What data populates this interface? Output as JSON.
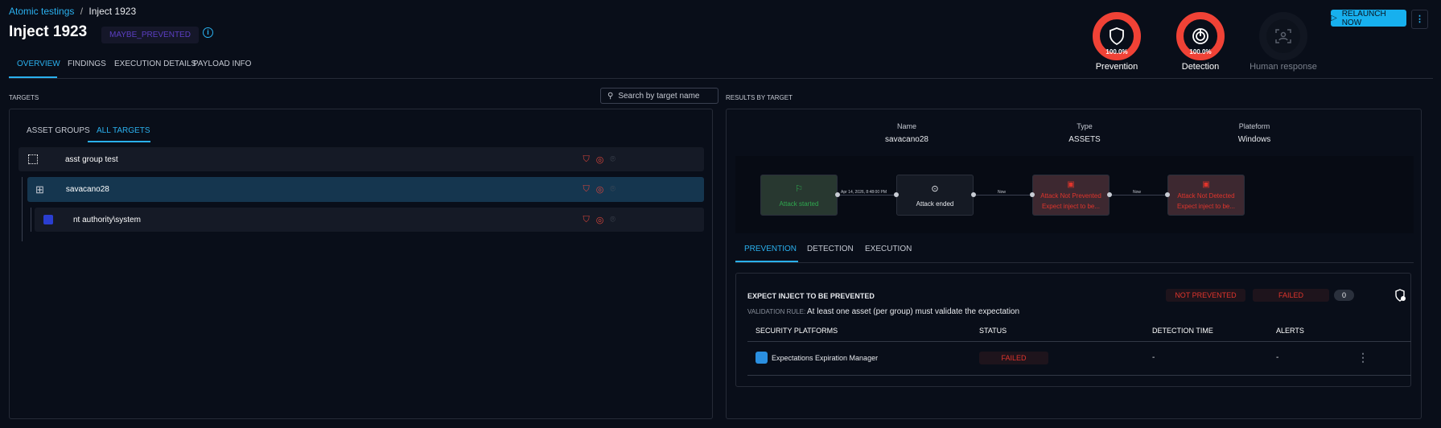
{
  "breadcrumb": {
    "parent": "Atomic testings",
    "separator": "/",
    "current": "Inject 1923"
  },
  "header": {
    "title": "Inject 1923",
    "status_badge": "MAYBE_PREVENTED",
    "info_icon": "info-icon"
  },
  "tabs": [
    {
      "label": "OVERVIEW",
      "active": true
    },
    {
      "label": "FINDINGS"
    },
    {
      "label": "EXECUTION DETAILS"
    },
    {
      "label": "PAYLOAD INFO"
    }
  ],
  "scores": [
    {
      "label": "Prevention",
      "value": "100.0%",
      "icon": "shield-icon",
      "color": "#f04236"
    },
    {
      "label": "Detection",
      "value": "100.0%",
      "icon": "radar-icon",
      "color": "#f04236"
    },
    {
      "label": "Human response",
      "icon": "human-scan-icon"
    }
  ],
  "actions": {
    "relaunch": "RELAUNCH NOW",
    "more": "⋮"
  },
  "targets": {
    "section_title": "TARGETS",
    "search_placeholder": "Search by target name",
    "tabs": [
      {
        "label": "ASSET GROUPS"
      },
      {
        "label": "ALL TARGETS",
        "active": true
      }
    ],
    "rows": [
      {
        "name": "asst group test",
        "icon": "asset-group-icon"
      },
      {
        "name": "savacano28",
        "icon": "windows-icon",
        "selected": true
      },
      {
        "name": "nt authority\\system",
        "icon": "user-icon"
      }
    ]
  },
  "results": {
    "section_title": "RESULTS BY TARGET",
    "info": {
      "name_label": "Name",
      "name": "savacano28",
      "type_label": "Type",
      "type": "ASSETS",
      "platform_label": "Plateform",
      "platform": "Windows"
    },
    "flow": {
      "nodes": [
        {
          "label": "Attack started",
          "icon": "flag-icon",
          "color": "#2fa84f"
        },
        {
          "label": "Attack ended",
          "icon": "target-icon",
          "color": "#ffffff"
        },
        {
          "label": "Attack Not Prevented",
          "sub": "Expect inject to be...",
          "icon": "alert-icon",
          "color": "#e0352c"
        },
        {
          "label": "Attack Not Detected",
          "sub": "Expect inject to be...",
          "icon": "alert-icon",
          "color": "#e0352c"
        }
      ],
      "edges": [
        "Apr 14, 2026, 8:48:00 PM",
        "Now",
        "Now"
      ]
    },
    "tabs": [
      {
        "label": "PREVENTION",
        "active": true
      },
      {
        "label": "DETECTION"
      },
      {
        "label": "EXECUTION"
      }
    ],
    "expectation": {
      "title": "EXPECT INJECT TO BE PREVENTED",
      "result": "NOT PREVENTED",
      "status": "FAILED",
      "count": "0",
      "rule_label": "VALIDATION RULE:",
      "rule": "At least one asset (per group) must validate the expectation",
      "columns": [
        "SECURITY PLATFORMS",
        "STATUS",
        "DETECTION TIME",
        "ALERTS"
      ],
      "rows": [
        {
          "platform": "Expectations Expiration Manager",
          "status": "FAILED",
          "detection_time": "-",
          "alerts": "-"
        }
      ]
    }
  }
}
